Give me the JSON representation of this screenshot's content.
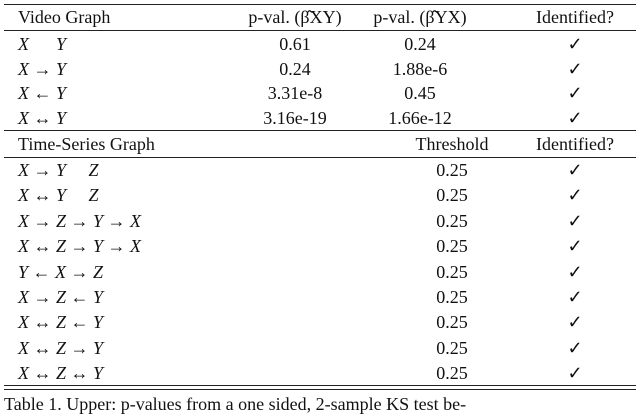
{
  "upper": {
    "headers": [
      "Video Graph",
      "p-val. (β̂XY)",
      "p-val. (β̂YX)",
      "Identified?"
    ],
    "rows": [
      [
        "X      Y",
        "0.61",
        "0.24",
        "✓"
      ],
      [
        "X → Y",
        "0.24",
        "1.88e-6",
        "✓"
      ],
      [
        "X ← Y",
        "3.31e-8",
        "0.45",
        "✓"
      ],
      [
        "X ↔ Y",
        "3.16e-19",
        "1.66e-12",
        "✓"
      ]
    ]
  },
  "lower": {
    "headers": [
      "Time-Series Graph",
      "Threshold",
      "Identified?"
    ],
    "rows": [
      [
        "X → Y     Z",
        "0.25",
        "✓"
      ],
      [
        "X ↔ Y     Z",
        "0.25",
        "✓"
      ],
      [
        "X → Z → Y → X",
        "0.25",
        "✓"
      ],
      [
        "X ↔ Z → Y → X",
        "0.25",
        "✓"
      ],
      [
        "Y ← X → Z",
        "0.25",
        "✓"
      ],
      [
        "X → Z ← Y",
        "0.25",
        "✓"
      ],
      [
        "X ↔ Z ← Y",
        "0.25",
        "✓"
      ],
      [
        "X ↔ Z → Y",
        "0.25",
        "✓"
      ],
      [
        "X ↔ Z ↔ Y",
        "0.25",
        "✓"
      ]
    ]
  },
  "caption": "Table 1. Upper: p-values from a one sided, 2-sample KS test be-"
}
